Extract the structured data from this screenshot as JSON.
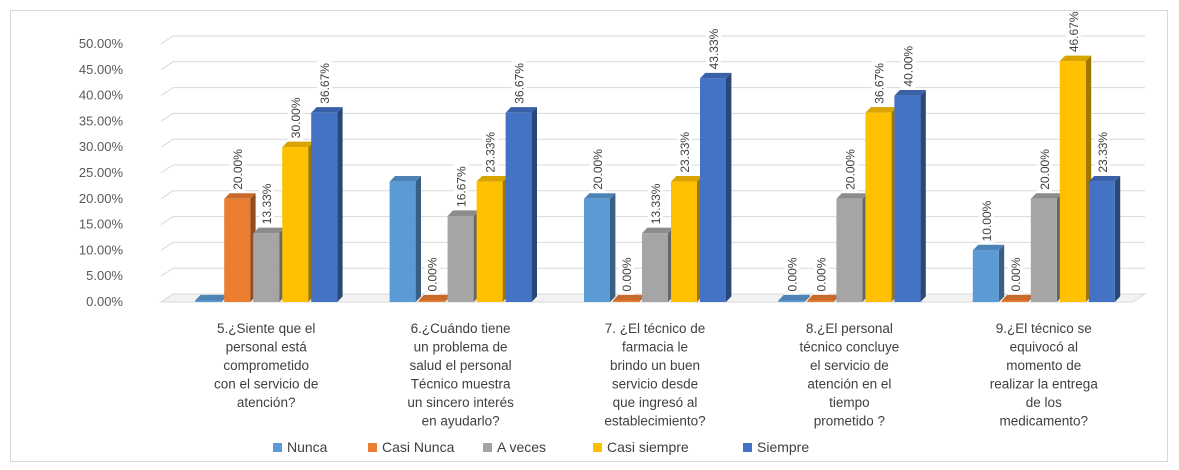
{
  "chart_data": {
    "type": "bar",
    "title": "",
    "xlabel": "",
    "ylabel": "",
    "ylim": [
      0,
      50
    ],
    "y_tick_labels": [
      "0.00%",
      "5.00%",
      "10.00%",
      "15.00%",
      "20.00%",
      "25.00%",
      "30.00%",
      "35.00%",
      "40.00%",
      "45.00%",
      "50.00%"
    ],
    "grid": true,
    "legend_position": "bottom",
    "categories": [
      [
        "5.¿Siente que el",
        "personal está",
        "comprometido",
        "con el servicio de",
        "atención?"
      ],
      [
        "6.¿Cuándo tiene",
        "un problema de",
        "salud el  personal",
        "Técnico  muestra",
        "un sincero interés",
        "en ayudarlo?"
      ],
      [
        "7. ¿El  técnico de",
        "farmacia  le",
        "brindo un buen",
        "servicio desde",
        "que ingresó al",
        "establecimiento?"
      ],
      [
        "8.¿El personal",
        "técnico concluye",
        "el servicio de",
        "atención en el",
        "tiempo",
        "prometido ?"
      ],
      [
        "9.¿El técnico se",
        "equivocó al",
        "momento de",
        "realizar la entrega",
        "de  los",
        "medicamento?"
      ]
    ],
    "series": [
      {
        "name": "Nunca",
        "color": "#5b9bd5",
        "values": [
          0,
          23.33,
          20,
          0,
          10
        ],
        "labels": [
          "",
          "",
          "20.00%",
          "0.00%",
          "10.00%"
        ]
      },
      {
        "name": "Casi Nunca",
        "color": "#ed7d31",
        "values": [
          20,
          0,
          0,
          0,
          0
        ],
        "labels": [
          "20.00%",
          "0.00%",
          "0.00%",
          "0.00%",
          "0.00%"
        ]
      },
      {
        "name": "A veces",
        "color": "#a5a5a5",
        "values": [
          13.33,
          16.67,
          13.33,
          20,
          20
        ],
        "labels": [
          "13.33%",
          "16.67%",
          "13.33%",
          "20.00%",
          "20.00%"
        ]
      },
      {
        "name": "Casi siempre",
        "color": "#ffc000",
        "values": [
          30,
          23.33,
          23.33,
          36.67,
          46.67
        ],
        "labels": [
          "30.00%",
          "23.33%",
          "23.33%",
          "36.67%",
          "46.67%"
        ]
      },
      {
        "name": "Siempre",
        "color": "#4472c4",
        "values": [
          36.67,
          36.67,
          43.33,
          40,
          23.33
        ],
        "labels": [
          "36.67%",
          "36.67%",
          "43.33%",
          "40.00%",
          "23.33%"
        ]
      }
    ]
  }
}
